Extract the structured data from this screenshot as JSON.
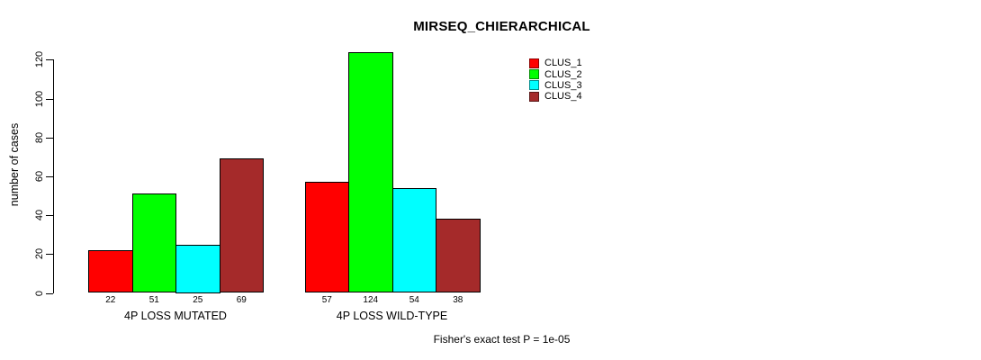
{
  "chart_data": {
    "type": "bar",
    "title": "MIRSEQ_CHIERARCHICAL",
    "ylabel": "number of cases",
    "xlabel": "",
    "yticks": [
      0,
      20,
      40,
      60,
      80,
      100,
      120
    ],
    "ylim": [
      0,
      130
    ],
    "grid": false,
    "legend_position": "top-right",
    "bar_value_labels_shown": true,
    "categories": [
      "4P LOSS MUTATED",
      "4P LOSS WILD-TYPE"
    ],
    "series": [
      {
        "name": "CLUS_1",
        "color": "#FF0000",
        "values": [
          22,
          57
        ]
      },
      {
        "name": "CLUS_2",
        "color": "#00FF00",
        "values": [
          51,
          124
        ]
      },
      {
        "name": "CLUS_3",
        "color": "#00FFFF",
        "values": [
          25,
          54
        ]
      },
      {
        "name": "CLUS_4",
        "color": "#A52A2A",
        "values": [
          69,
          38
        ]
      }
    ],
    "annotation": "Fisher's exact test P = 1e-05",
    "colors": {
      "axis": "#000000",
      "background": "#FFFFFF",
      "bar_border": "#000000"
    }
  }
}
